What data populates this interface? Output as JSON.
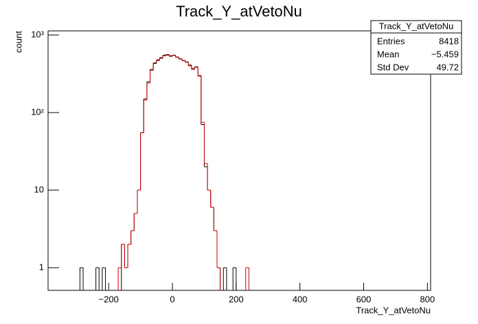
{
  "chart_data": {
    "type": "histogram",
    "title": "Track_Y_atVetoNu",
    "x_label": "Track_Y_atVetoNu",
    "y_label": "count",
    "log_y": true,
    "bins": [
      -300,
      -290,
      -280,
      -270,
      -260,
      -250,
      -240,
      -230,
      -220,
      -210,
      -200,
      -190,
      -180,
      -170,
      -160,
      -150,
      -140,
      -130,
      -120,
      -110,
      -100,
      -90,
      -80,
      -70,
      -60,
      -50,
      -40,
      -30,
      -20,
      -10,
      0,
      10,
      20,
      30,
      40,
      50,
      60,
      70,
      80,
      90,
      100,
      110,
      120,
      130,
      140,
      150,
      160,
      170,
      180,
      190,
      200,
      210,
      220,
      230,
      240
    ],
    "series": [
      {
        "color": "#000000",
        "values": [
          0,
          1,
          0,
          0,
          0,
          0,
          1,
          0,
          1,
          0,
          0,
          0,
          0,
          0,
          2,
          1,
          2,
          3,
          5,
          10,
          55,
          150,
          250,
          360,
          430,
          470,
          510,
          550,
          560,
          540,
          550,
          520,
          490,
          470,
          450,
          410,
          370,
          390,
          300,
          70,
          20,
          10,
          6,
          3,
          1,
          0,
          1,
          0,
          0,
          1,
          0,
          0,
          0,
          0
        ]
      },
      {
        "color": "#cc0000",
        "values": [
          0,
          0,
          0,
          0,
          0,
          0,
          0,
          0,
          0,
          0,
          0,
          0,
          0,
          1,
          2,
          1,
          2,
          3,
          5,
          10,
          55,
          145,
          240,
          350,
          440,
          480,
          500,
          540,
          550,
          530,
          545,
          515,
          495,
          465,
          445,
          400,
          360,
          385,
          295,
          75,
          22,
          10,
          6,
          3,
          1,
          0,
          0,
          0,
          0,
          0,
          0,
          0,
          0,
          1
        ]
      }
    ],
    "xlim": [
      -390,
      810
    ],
    "xticks": [
      {
        "value": -200,
        "label": "−200"
      },
      0,
      200,
      400,
      600,
      800
    ],
    "ylim": [
      0.51,
      1130
    ],
    "yticks": [
      1,
      10,
      {
        "value": 100,
        "label": "10²"
      },
      {
        "value": 1000,
        "label": "10³"
      }
    ],
    "stats": {
      "title": "Track_Y_atVetoNu",
      "rows": [
        [
          "Entries",
          "8418"
        ],
        [
          "Mean",
          "−5.459"
        ],
        [
          "Std Dev",
          "49.72"
        ]
      ]
    }
  }
}
